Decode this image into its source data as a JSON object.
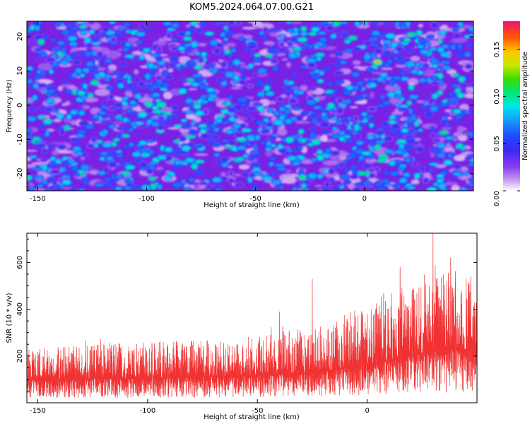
{
  "title": "KOM5.2024.064.07.00.G21",
  "chart_data": [
    {
      "type": "heatmap",
      "xlabel": "Height of straight line (km)",
      "ylabel": "Frequency (Hz)",
      "xlim": [
        -155,
        50
      ],
      "ylim": [
        -25,
        24.5
      ],
      "xticks": [
        -150,
        -100,
        -50,
        0
      ],
      "xtick_labels": [
        "-150",
        "-100",
        "-50",
        "0"
      ],
      "yticks": [
        20,
        10,
        0,
        -10,
        -20
      ],
      "ytick_labels": [
        "20",
        "10",
        "0",
        "-10",
        "-20"
      ],
      "colorbar": {
        "label": "Normalized spectral amplitude",
        "range": [
          0.0,
          0.18
        ],
        "ticks": [
          0.0,
          0.05,
          0.1,
          0.15
        ],
        "tick_labels": [
          "0.00",
          "0.05",
          "0.10",
          "0.15"
        ]
      },
      "hotspots": [
        {
          "x": 6,
          "y": 12.5,
          "value": 0.16
        },
        {
          "x": -130,
          "y": 3.5,
          "value": 0.09
        },
        {
          "x": -90,
          "y": -13,
          "value": 0.09
        },
        {
          "x": -100,
          "y": 16,
          "value": 0.08
        },
        {
          "x": -84,
          "y": 16.5,
          "value": 0.08
        }
      ]
    },
    {
      "type": "line",
      "xlabel": "Height of straight line (km)",
      "ylabel": "SNR (10 * v/v)",
      "xlim": [
        -155,
        50
      ],
      "ylim": [
        0,
        725
      ],
      "xticks": [
        -150,
        -100,
        -50,
        0
      ],
      "xtick_labels": [
        "-150",
        "-100",
        "-50",
        "0"
      ],
      "yticks": [
        200,
        400,
        600
      ],
      "ytick_labels": [
        "200",
        "400",
        "600"
      ],
      "series": [
        {
          "color": "#f03232",
          "x": [
            -155,
            -140,
            -120,
            -100,
            -80,
            -60,
            -40,
            -20,
            0,
            10,
            20,
            30,
            40,
            50
          ],
          "baseline": [
            100,
            100,
            105,
            105,
            110,
            115,
            120,
            135,
            165,
            180,
            200,
            220,
            230,
            225
          ],
          "upper_envelope": [
            230,
            240,
            250,
            260,
            265,
            270,
            300,
            330,
            390,
            450,
            500,
            550,
            560,
            520
          ],
          "peaks": [
            {
              "x": -40,
              "y": 390
            },
            {
              "x": -25,
              "y": 530
            },
            {
              "x": 15,
              "y": 580
            },
            {
              "x": 30,
              "y": 725
            },
            {
              "x": 38,
              "y": 620
            }
          ]
        }
      ]
    }
  ]
}
